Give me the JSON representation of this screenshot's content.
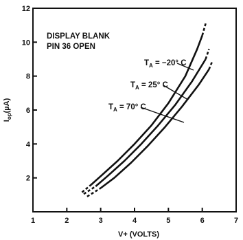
{
  "chart_data": {
    "type": "line",
    "xlabel": "V+ (VOLTS)",
    "ylabel": "Iop(µA)",
    "xlim": [
      1,
      7
    ],
    "ylim": [
      0,
      12
    ],
    "x_ticks": [
      1,
      2,
      3,
      4,
      5,
      6,
      7
    ],
    "y_ticks": [
      2,
      4,
      6,
      8,
      10,
      12
    ],
    "grid": false,
    "annotation": {
      "line1": "DISPLAY BLANK",
      "line2": "PIN 36 OPEN"
    },
    "series": [
      {
        "name": "TA = −20° C",
        "label_parts": {
          "prefix": "T",
          "sub": "A",
          "value": " = −20° C"
        },
        "solid": [
          [
            2.72,
            1.6
          ],
          [
            3.0,
            2.1
          ],
          [
            3.5,
            3.0
          ],
          [
            4.0,
            4.0
          ],
          [
            4.5,
            5.1
          ],
          [
            5.0,
            6.4
          ],
          [
            5.5,
            8.0
          ],
          [
            5.85,
            9.6
          ],
          [
            6.0,
            10.4
          ]
        ],
        "dashed_start": [
          [
            2.45,
            1.15
          ],
          [
            2.72,
            1.6
          ]
        ],
        "dashed_end": [
          [
            6.0,
            10.4
          ],
          [
            6.1,
            11.1
          ]
        ]
      },
      {
        "name": "TA = 25° C",
        "label_parts": {
          "prefix": "T",
          "sub": "A",
          "value": " = 25° C"
        },
        "solid": [
          [
            2.85,
            1.5
          ],
          [
            3.2,
            2.1
          ],
          [
            3.7,
            3.0
          ],
          [
            4.2,
            4.0
          ],
          [
            4.7,
            5.1
          ],
          [
            5.2,
            6.3
          ],
          [
            5.7,
            7.7
          ],
          [
            6.1,
            9.0
          ]
        ],
        "dashed_start": [
          [
            2.5,
            1.05
          ],
          [
            2.85,
            1.5
          ]
        ],
        "dashed_end": [
          [
            6.1,
            9.0
          ],
          [
            6.2,
            9.6
          ]
        ]
      },
      {
        "name": "TA = 70° C",
        "label_parts": {
          "prefix": "T",
          "sub": "A",
          "value": " = 70° C"
        },
        "solid": [
          [
            3.0,
            1.4
          ],
          [
            3.4,
            2.0
          ],
          [
            3.9,
            2.9
          ],
          [
            4.4,
            3.9
          ],
          [
            4.9,
            5.0
          ],
          [
            5.4,
            6.2
          ],
          [
            5.9,
            7.5
          ],
          [
            6.2,
            8.4
          ]
        ],
        "dashed_start": [
          [
            2.6,
            0.9
          ],
          [
            3.0,
            1.4
          ]
        ],
        "dashed_end": [
          [
            6.2,
            8.4
          ],
          [
            6.3,
            8.9
          ]
        ]
      }
    ]
  }
}
